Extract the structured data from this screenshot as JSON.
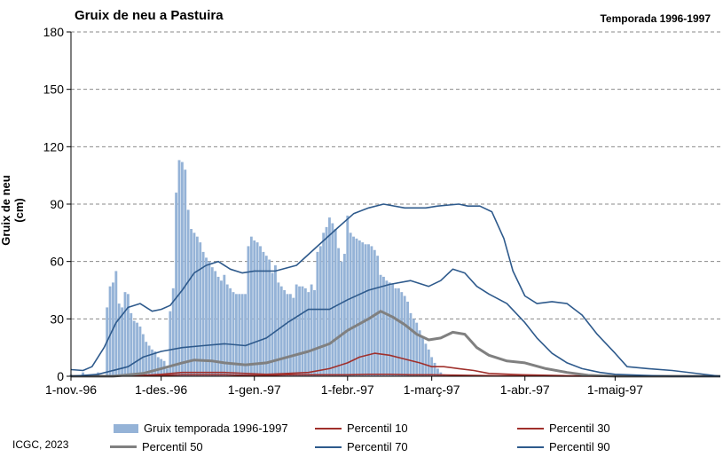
{
  "title": "Gruix de neu a Pastuira",
  "subtitle": "Temporada 1996-1997",
  "credit": "ICGC, 2023",
  "colors": {
    "bars": "#95b3d7",
    "p10": "#a0302c",
    "p30": "#a0302c",
    "p50": "#808080",
    "p70": "#2e5a8c",
    "p90": "#2e5a8c",
    "grid": "#8a8a8a"
  },
  "chart_data": {
    "type": "bar",
    "ylabel": "Gruix de neu (cm)",
    "ylim": [
      0,
      180
    ],
    "yticks": [
      0,
      30,
      60,
      90,
      120,
      150,
      180
    ],
    "x_start": "1996-11-01",
    "x_end": "1997-06-05",
    "xtick_labels": [
      "1-nov.-96",
      "1-des.-96",
      "1-gen.-97",
      "1-febr.-97",
      "1-març-97",
      "1-abr.-97",
      "1-maig-97"
    ],
    "xtick_dates": [
      "1996-11-01",
      "1996-12-01",
      "1997-01-01",
      "1997-02-01",
      "1997-03-01",
      "1997-04-01",
      "1997-05-01"
    ],
    "grid": true,
    "legend_position": "bottom",
    "bars_series": {
      "name": "Gruix temporada 1996-1997",
      "dates": [
        "1996-11-01",
        "1996-11-05",
        "1996-11-10",
        "1996-11-13",
        "1996-11-14",
        "1996-11-15",
        "1996-11-16",
        "1996-11-17",
        "1996-11-18",
        "1996-11-19",
        "1996-11-20",
        "1996-11-21",
        "1996-11-22",
        "1996-11-23",
        "1996-11-24",
        "1996-11-25",
        "1996-11-26",
        "1996-11-27",
        "1996-11-28",
        "1996-11-29",
        "1996-11-30",
        "1996-12-01",
        "1996-12-02",
        "1996-12-03",
        "1996-12-04",
        "1996-12-05",
        "1996-12-06",
        "1996-12-07",
        "1996-12-08",
        "1996-12-09",
        "1996-12-10",
        "1996-12-11",
        "1996-12-12",
        "1996-12-13",
        "1996-12-14",
        "1996-12-15",
        "1996-12-16",
        "1996-12-17",
        "1996-12-18",
        "1996-12-19",
        "1996-12-20",
        "1996-12-21",
        "1996-12-22",
        "1996-12-23",
        "1996-12-24",
        "1996-12-25",
        "1996-12-26",
        "1996-12-27",
        "1996-12-28",
        "1996-12-29",
        "1996-12-30",
        "1996-12-31",
        "1997-01-01",
        "1997-01-02",
        "1997-01-03",
        "1997-01-04",
        "1997-01-05",
        "1997-01-06",
        "1997-01-07",
        "1997-01-08",
        "1997-01-09",
        "1997-01-10",
        "1997-01-11",
        "1997-01-12",
        "1997-01-13",
        "1997-01-14",
        "1997-01-15",
        "1997-01-16",
        "1997-01-17",
        "1997-01-18",
        "1997-01-19",
        "1997-01-20",
        "1997-01-21",
        "1997-01-22",
        "1997-01-23",
        "1997-01-24",
        "1997-01-25",
        "1997-01-26",
        "1997-01-27",
        "1997-01-28",
        "1997-01-29",
        "1997-01-30",
        "1997-01-31",
        "1997-02-01",
        "1997-02-02",
        "1997-02-03",
        "1997-02-04",
        "1997-02-05",
        "1997-02-06",
        "1997-02-07",
        "1997-02-08",
        "1997-02-09",
        "1997-02-10",
        "1997-02-11",
        "1997-02-12",
        "1997-02-13",
        "1997-02-14",
        "1997-02-15",
        "1997-02-16",
        "1997-02-17",
        "1997-02-18",
        "1997-02-19",
        "1997-02-20",
        "1997-02-21",
        "1997-02-22",
        "1997-02-23",
        "1997-02-24",
        "1997-02-25",
        "1997-02-26",
        "1997-02-27",
        "1997-02-28",
        "1997-03-01",
        "1997-03-02",
        "1997-03-03",
        "1997-03-04",
        "1997-03-05"
      ],
      "values": [
        1,
        2,
        2,
        36,
        47,
        49,
        55,
        38,
        36,
        44,
        43,
        33,
        29,
        28,
        26,
        22,
        18,
        16,
        14,
        13,
        10,
        9,
        8,
        4,
        34,
        46,
        96,
        113,
        112,
        108,
        87,
        77,
        75,
        73,
        70,
        65,
        62,
        60,
        57,
        55,
        52,
        50,
        53,
        48,
        46,
        44,
        43,
        43,
        43,
        43,
        68,
        73,
        71,
        70,
        68,
        65,
        63,
        61,
        54,
        58,
        49,
        47,
        45,
        43,
        43,
        41,
        48,
        47,
        47,
        46,
        44,
        48,
        45,
        65,
        68,
        75,
        78,
        83,
        80,
        77,
        67,
        60,
        64,
        84,
        75,
        73,
        72,
        71,
        70,
        69,
        69,
        68,
        66,
        63,
        53,
        52,
        50,
        49,
        48,
        46,
        46,
        44,
        42,
        39,
        33,
        30,
        28,
        24,
        20,
        17,
        14,
        10,
        7,
        4,
        2,
        1
      ]
    },
    "series": [
      {
        "name": "Percentil 10",
        "dates": [
          "1996-11-01",
          "1996-11-15",
          "1996-11-25",
          "1996-12-01",
          "1996-12-08",
          "1996-12-15",
          "1996-12-22",
          "1996-12-29",
          "1997-01-05",
          "1997-01-12",
          "1997-01-19",
          "1997-01-26",
          "1997-02-01",
          "1997-02-08",
          "1997-02-15",
          "1997-02-22",
          "1997-03-01",
          "1997-03-08",
          "1997-03-15",
          "1997-03-22",
          "1997-03-31",
          "1997-04-15",
          "1997-05-01",
          "1997-06-05"
        ],
        "values": [
          0,
          0,
          0.5,
          0.5,
          0.8,
          0.8,
          0.8,
          0.5,
          0.5,
          0.8,
          0.8,
          0.8,
          0.8,
          1,
          1,
          0.8,
          0.8,
          0.6,
          0.4,
          0.3,
          0.2,
          0.1,
          0,
          0
        ]
      },
      {
        "name": "Percentil 30",
        "dates": [
          "1996-11-01",
          "1996-11-15",
          "1996-11-25",
          "1996-12-01",
          "1996-12-08",
          "1996-12-15",
          "1996-12-22",
          "1996-12-29",
          "1997-01-05",
          "1997-01-12",
          "1997-01-19",
          "1997-01-26",
          "1997-02-01",
          "1997-02-05",
          "1997-02-10",
          "1997-02-15",
          "1997-02-20",
          "1997-02-25",
          "1997-03-01",
          "1997-03-05",
          "1997-03-10",
          "1997-03-15",
          "1997-03-20",
          "1997-03-31",
          "1997-04-15",
          "1997-05-01",
          "1997-06-05"
        ],
        "values": [
          0,
          0,
          0.5,
          1,
          2,
          2,
          2,
          1.5,
          1,
          1.5,
          2,
          4,
          7,
          10,
          12,
          11,
          9,
          7,
          5,
          5,
          4,
          3,
          1.5,
          0.8,
          0.3,
          0,
          0
        ]
      },
      {
        "name": "Percentil 50",
        "dates": [
          "1996-11-01",
          "1996-11-15",
          "1996-11-25",
          "1996-12-01",
          "1996-12-08",
          "1996-12-12",
          "1996-12-18",
          "1996-12-22",
          "1996-12-29",
          "1997-01-05",
          "1997-01-12",
          "1997-01-19",
          "1997-01-26",
          "1997-02-01",
          "1997-02-08",
          "1997-02-12",
          "1997-02-16",
          "1997-02-20",
          "1997-02-24",
          "1997-02-28",
          "1997-03-04",
          "1997-03-08",
          "1997-03-12",
          "1997-03-16",
          "1997-03-20",
          "1997-03-26",
          "1997-04-01",
          "1997-04-08",
          "1997-04-15",
          "1997-04-22",
          "1997-05-01",
          "1997-06-05"
        ],
        "values": [
          0,
          0,
          1.5,
          4,
          7,
          8.5,
          8,
          7,
          6,
          7,
          10,
          13,
          17,
          24,
          30,
          34,
          31,
          27,
          22,
          19,
          20,
          23,
          22,
          15,
          11,
          8,
          7,
          4,
          2,
          0.5,
          0,
          0
        ]
      },
      {
        "name": "Percentil 70",
        "dates": [
          "1996-11-01",
          "1996-11-10",
          "1996-11-20",
          "1996-11-25",
          "1996-12-01",
          "1996-12-08",
          "1996-12-15",
          "1996-12-22",
          "1996-12-29",
          "1997-01-05",
          "1997-01-12",
          "1997-01-19",
          "1997-01-26",
          "1997-02-01",
          "1997-02-08",
          "1997-02-15",
          "1997-02-22",
          "1997-02-28",
          "1997-03-04",
          "1997-03-08",
          "1997-03-12",
          "1997-03-16",
          "1997-03-20",
          "1997-03-26",
          "1997-04-01",
          "1997-04-05",
          "1997-04-10",
          "1997-04-15",
          "1997-04-20",
          "1997-04-26",
          "1997-05-01",
          "1997-05-10",
          "1997-05-20",
          "1997-06-05"
        ],
        "values": [
          0,
          1,
          5,
          10,
          13,
          15,
          16,
          17,
          16,
          20,
          28,
          35,
          35,
          40,
          45,
          48,
          50,
          47,
          50,
          56,
          54,
          47,
          43,
          38,
          28,
          20,
          12,
          7,
          4,
          2,
          1,
          0.5,
          0,
          0
        ]
      },
      {
        "name": "Percentil 90",
        "dates": [
          "1996-11-01",
          "1996-11-05",
          "1996-11-08",
          "1996-11-12",
          "1996-11-16",
          "1996-11-20",
          "1996-11-24",
          "1996-11-28",
          "1996-12-01",
          "1996-12-04",
          "1996-12-08",
          "1996-12-12",
          "1996-12-16",
          "1996-12-20",
          "1996-12-24",
          "1996-12-28",
          "1997-01-01",
          "1997-01-08",
          "1997-01-15",
          "1997-01-22",
          "1997-01-29",
          "1997-02-03",
          "1997-02-08",
          "1997-02-13",
          "1997-02-20",
          "1997-02-27",
          "1997-03-03",
          "1997-03-10",
          "1997-03-13",
          "1997-03-17",
          "1997-03-21",
          "1997-03-25",
          "1997-03-28",
          "1997-04-01",
          "1997-04-05",
          "1997-04-10",
          "1997-04-15",
          "1997-04-20",
          "1997-04-25",
          "1997-05-01",
          "1997-05-05",
          "1997-05-12",
          "1997-05-20",
          "1997-06-05"
        ],
        "values": [
          3.5,
          3,
          5,
          15,
          28,
          36,
          38,
          34,
          35,
          37,
          45,
          54,
          58,
          60,
          56,
          54,
          55,
          55,
          58,
          68,
          78,
          85,
          88,
          90,
          88,
          88,
          89,
          90,
          89,
          89,
          86,
          72,
          55,
          42,
          38,
          39,
          38,
          32,
          22,
          12,
          5,
          4,
          3,
          0
        ]
      }
    ]
  }
}
